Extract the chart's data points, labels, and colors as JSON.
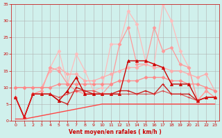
{
  "title": "",
  "xlabel": "Vent moyen/en rafales ( km/h )",
  "background_color": "#d0f0ec",
  "grid_color": "#b0b0b0",
  "xlim": [
    -0.5,
    23.5
  ],
  "ylim": [
    0,
    35
  ],
  "yticks": [
    0,
    5,
    10,
    15,
    20,
    25,
    30,
    35
  ],
  "xticks": [
    0,
    1,
    2,
    3,
    4,
    5,
    6,
    7,
    8,
    9,
    10,
    11,
    12,
    13,
    14,
    15,
    16,
    17,
    18,
    19,
    20,
    21,
    22,
    23
  ],
  "series": [
    {
      "x": [
        0,
        1,
        2,
        3,
        4,
        5,
        6,
        7,
        8,
        9,
        10,
        11,
        12,
        13,
        14,
        15,
        16,
        17,
        18,
        19,
        20,
        21,
        22,
        23
      ],
      "y": [
        7,
        1,
        8,
        9,
        16,
        21,
        11,
        20,
        15,
        9,
        10,
        23,
        23,
        33,
        29,
        18,
        17,
        35,
        30,
        21,
        16,
        6,
        9,
        7
      ],
      "color": "#ffbbbb",
      "linewidth": 0.9,
      "marker": "D",
      "markersize": 2.5,
      "alpha": 1.0
    },
    {
      "x": [
        0,
        1,
        2,
        3,
        4,
        5,
        6,
        7,
        8,
        9,
        10,
        11,
        12,
        13,
        14,
        15,
        16,
        17,
        18,
        19,
        20,
        21,
        22,
        23
      ],
      "y": [
        7,
        1,
        8,
        9,
        16,
        15,
        11,
        9,
        8,
        8,
        8,
        11,
        23,
        28,
        17,
        17,
        28,
        21,
        22,
        17,
        16,
        6,
        9,
        7
      ],
      "color": "#ff9999",
      "linewidth": 0.9,
      "marker": "D",
      "markersize": 2.5,
      "alpha": 1.0
    },
    {
      "x": [
        0,
        1,
        2,
        3,
        4,
        5,
        6,
        7,
        8,
        9,
        10,
        11,
        12,
        13,
        14,
        15,
        16,
        17,
        18,
        19,
        20,
        21,
        22,
        23
      ],
      "y": [
        10,
        10,
        10,
        10,
        15,
        16,
        14,
        14,
        12,
        12,
        13,
        14,
        15,
        16,
        16,
        17,
        16,
        16,
        15,
        15,
        14,
        13,
        14,
        9
      ],
      "color": "#ffaaaa",
      "linewidth": 0.9,
      "marker": "D",
      "markersize": 2.5,
      "alpha": 1.0
    },
    {
      "x": [
        0,
        1,
        2,
        3,
        4,
        5,
        6,
        7,
        8,
        9,
        10,
        11,
        12,
        13,
        14,
        15,
        16,
        17,
        18,
        19,
        20,
        21,
        22,
        23
      ],
      "y": [
        10,
        10,
        10,
        10,
        10,
        11,
        11,
        11,
        11,
        11,
        11,
        11,
        12,
        12,
        12,
        13,
        13,
        13,
        12,
        12,
        11,
        11,
        10,
        9
      ],
      "color": "#ff8888",
      "linewidth": 0.9,
      "marker": "D",
      "markersize": 2.5,
      "alpha": 1.0
    },
    {
      "x": [
        0,
        1,
        2,
        3,
        4,
        5,
        6,
        7,
        8,
        9,
        10,
        11,
        12,
        13,
        14,
        15,
        16,
        17,
        18,
        19,
        20,
        21,
        22,
        23
      ],
      "y": [
        7,
        1,
        8,
        8,
        8,
        6,
        9,
        13,
        8,
        8,
        8,
        8,
        8,
        18,
        18,
        18,
        17,
        16,
        11,
        11,
        11,
        6,
        7,
        7
      ],
      "color": "#cc0000",
      "linewidth": 1.0,
      "marker": "^",
      "markersize": 3,
      "alpha": 1.0
    },
    {
      "x": [
        0,
        1,
        2,
        3,
        4,
        5,
        6,
        7,
        8,
        9,
        10,
        11,
        12,
        13,
        14,
        15,
        16,
        17,
        18,
        19,
        20,
        21,
        22,
        23
      ],
      "y": [
        7,
        1,
        8,
        8,
        8,
        6,
        5,
        10,
        9,
        8,
        8,
        8,
        9,
        9,
        8,
        9,
        8,
        11,
        8,
        8,
        8,
        6,
        7,
        7
      ],
      "color": "#cc0000",
      "linewidth": 1.0,
      "marker": "+",
      "markersize": 3,
      "alpha": 0.85
    },
    {
      "x": [
        0,
        1,
        2,
        3,
        4,
        5,
        6,
        7,
        8,
        9,
        10,
        11,
        12,
        13,
        14,
        15,
        16,
        17,
        18,
        19,
        20,
        21,
        22,
        23
      ],
      "y": [
        7,
        1,
        8,
        8,
        8,
        7,
        8,
        9,
        9,
        9,
        8,
        8,
        8,
        8,
        8,
        8,
        8,
        9,
        8,
        8,
        7,
        6,
        7,
        7
      ],
      "color": "#dd2222",
      "linewidth": 0.9,
      "marker": "+",
      "markersize": 2.5,
      "alpha": 0.7
    },
    {
      "x": [
        0,
        1,
        2,
        3,
        4,
        5,
        6,
        7,
        8,
        9,
        10,
        11,
        12,
        13,
        14,
        15,
        16,
        17,
        18,
        19,
        20,
        21,
        22,
        23
      ],
      "y": [
        0.5,
        0.5,
        1,
        1.5,
        2,
        2.5,
        3,
        3.5,
        4,
        4.5,
        5,
        5,
        5,
        5,
        5,
        5,
        5,
        5,
        5,
        5,
        5,
        5,
        5,
        5
      ],
      "color": "#ff4444",
      "linewidth": 1.0,
      "marker": null,
      "markersize": 0,
      "alpha": 1.0
    }
  ]
}
